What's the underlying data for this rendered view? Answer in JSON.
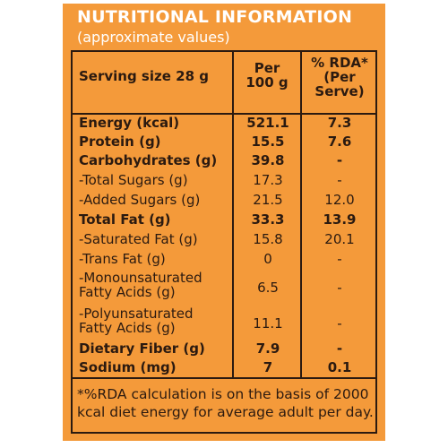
{
  "title": "NUTRITIONAL INFORMATION",
  "subtitle": "(approximate values)",
  "header": {
    "serving": "Serving size 28 g",
    "per100_line1": "Per",
    "per100_line2": "100 g",
    "rda_line1": "% RDA*",
    "rda_line2": "(Per",
    "rda_line3": "Serve)"
  },
  "rows": [
    {
      "name": "Energy (kcal)",
      "per100": "521.1",
      "rda": "7.3",
      "bold": true
    },
    {
      "name": "Protein (g)",
      "per100": "15.5",
      "rda": "7.6",
      "bold": true
    },
    {
      "name": "Carbohydrates (g)",
      "per100": "39.8",
      "rda": "-",
      "bold": true
    },
    {
      "name": "-Total Sugars (g)",
      "per100": "17.3",
      "rda": "-",
      "bold": false
    },
    {
      "name": "-Added Sugars (g)",
      "per100": "21.5",
      "rda": "12.0",
      "bold": false
    },
    {
      "name": "Total Fat (g)",
      "per100": "33.3",
      "rda": "13.9",
      "bold": true
    },
    {
      "name": "-Saturated Fat (g)",
      "per100": "15.8",
      "rda": "20.1",
      "bold": false
    },
    {
      "name": "-Trans Fat (g)",
      "per100": "0",
      "rda": "-",
      "bold": false
    },
    {
      "name_line1": "-Monounsaturated",
      "name_line2": "Fatty Acids (g)",
      "per100": "6.5",
      "rda": "-",
      "bold": false
    },
    {
      "name_line1": "-Polyunsaturated",
      "name_line2": "Fatty Acids (g)",
      "per100": "11.1",
      "rda": "-",
      "bold": false
    },
    {
      "name": "Dietary Fiber (g)",
      "per100": "7.9",
      "rda": "-",
      "bold": true
    },
    {
      "name": "Sodium (mg)",
      "per100": "7",
      "rda": "0.1",
      "bold": true
    }
  ],
  "footnote": "*%RDA calculation is on the basis of 2000 kcal diet energy for average adult per day."
}
